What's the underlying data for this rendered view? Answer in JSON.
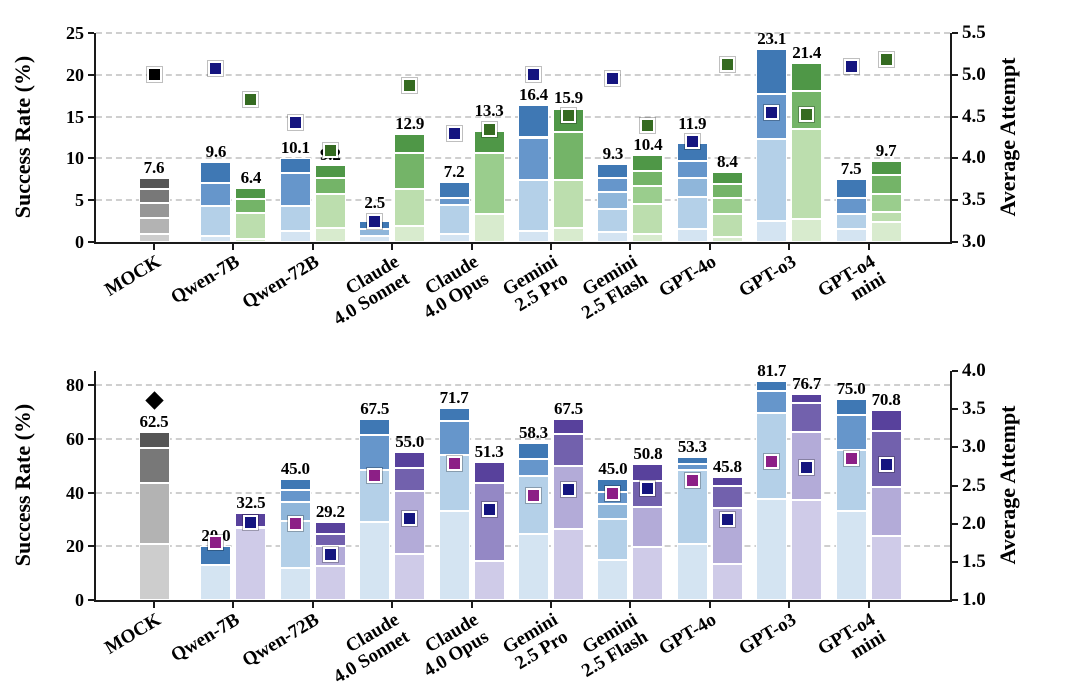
{
  "figure": {
    "description": "Two stacked-bar charts comparing model success rates (left axis) with average attempt markers (right axis)"
  },
  "colors": {
    "families": {
      "blue": [
        "#d4e4f2",
        "#b4d0e8",
        "#8fb6da",
        "#6696cb",
        "#3f78b4"
      ],
      "green": [
        "#d8ebce",
        "#bcdeae",
        "#9acd8d",
        "#74b468",
        "#4f9747"
      ],
      "purple": [
        "#cfcbe8",
        "#b3abd8",
        "#9488c5",
        "#7261ad",
        "#58419c"
      ],
      "gray": [
        "#cdcdcd",
        "#b3b3b3",
        "#979797",
        "#787878",
        "#565656"
      ]
    },
    "markers": {
      "navy": "#15157f",
      "darkgreen": "#356b21",
      "magenta": "#8c1f86",
      "black": "#000000"
    },
    "grid": "#cfcfcf",
    "spine": "#1a1a1a"
  },
  "chart_data": [
    {
      "type": "bar",
      "stacked": true,
      "ylabel_left": "Success Rate (%)",
      "ylabel_right": "Average Attempt",
      "axis_top_value": 25,
      "left_tick_values": [
        0,
        5,
        10,
        15,
        20,
        25
      ],
      "left_tick_labels": [
        "0",
        "5",
        "10",
        "15",
        "20",
        "25"
      ],
      "right_min": 3.0,
      "right_max": 5.5,
      "right_tick_values": [
        3.0,
        3.5,
        4.0,
        4.5,
        5.0,
        5.5
      ],
      "right_tick_labels": [
        "3.0",
        "3.5",
        "4.0",
        "4.5",
        "5.0",
        "5.5"
      ],
      "gridlines": [
        5,
        10,
        15,
        20,
        25
      ],
      "categories": [
        "MOCK",
        "Qwen-7B",
        "Qwen-72B",
        "Claude\n4.0 Sonnet",
        "Claude\n4.0 Opus",
        "Gemini\n2.5 Pro",
        "Gemini\n2.5 Flash",
        "GPT-4o",
        "GPT-o3",
        "GPT-o4\nmini"
      ],
      "groups": [
        {
          "category": "MOCK",
          "bars": [
            {
              "family": "gray",
              "label": "7.6",
              "total": 7.6,
              "cum": [
                1.0,
                2.9,
                4.7,
                6.3,
                7.6
              ],
              "marker": {
                "shape": "square",
                "color": "black",
                "attempt": 5.0
              }
            }
          ]
        },
        {
          "category": "Qwen-7B",
          "bars": [
            {
              "family": "blue",
              "label": "9.6",
              "total": 9.6,
              "cum": [
                0.7,
                4.3,
                7.0,
                9.6
              ],
              "marker": {
                "shape": "square",
                "color": "navy",
                "attempt": 5.08
              }
            },
            {
              "family": "green",
              "label": "6.4",
              "total": 6.4,
              "cum": [
                0.4,
                3.5,
                5.2,
                6.4
              ],
              "marker": {
                "shape": "square",
                "color": "darkgreen",
                "attempt": 4.7
              }
            }
          ]
        },
        {
          "category": "Qwen-72B",
          "bars": [
            {
              "family": "blue",
              "label": "10.1",
              "total": 10.1,
              "cum": [
                1.3,
                4.3,
                8.3,
                10.1
              ],
              "marker": {
                "shape": "square",
                "color": "navy",
                "attempt": 4.43
              }
            },
            {
              "family": "green",
              "label": "9.2",
              "total": 9.2,
              "cum": [
                1.7,
                5.8,
                7.7,
                9.2
              ],
              "marker": {
                "shape": "square",
                "color": "darkgreen",
                "attempt": 4.1
              }
            }
          ]
        },
        {
          "category": "Claude 4.0 Sonnet",
          "bars": [
            {
              "family": "blue",
              "label": "2.5",
              "total": 2.5,
              "cum": [
                0.7,
                1.6,
                2.5
              ],
              "marker": {
                "shape": "square",
                "color": "navy",
                "attempt": 3.25
              }
            },
            {
              "family": "green",
              "label": "12.9",
              "total": 12.9,
              "cum": [
                1.9,
                6.3,
                10.7,
                12.9
              ],
              "marker": {
                "shape": "square",
                "color": "darkgreen",
                "attempt": 4.87
              }
            }
          ]
        },
        {
          "category": "Claude 4.0 Opus",
          "bars": [
            {
              "family": "blue",
              "label": "7.2",
              "total": 7.2,
              "cum": [
                1.0,
                4.4,
                5.3,
                7.2
              ],
              "marker": {
                "shape": "square",
                "color": "navy",
                "attempt": 4.3
              }
            },
            {
              "family": "green",
              "label": "13.3",
              "total": 13.3,
              "cum": [
                3.3,
                10.7,
                13.3
              ],
              "marker": {
                "shape": "square",
                "color": "darkgreen",
                "attempt": 4.35
              }
            }
          ]
        },
        {
          "category": "Gemini 2.5 Pro",
          "bars": [
            {
              "family": "blue",
              "label": "16.4",
              "total": 16.4,
              "cum": [
                1.3,
                7.4,
                12.5,
                16.4
              ],
              "marker": {
                "shape": "square",
                "color": "navy",
                "attempt": 5.0
              }
            },
            {
              "family": "green",
              "label": "15.9",
              "total": 15.9,
              "cum": [
                1.7,
                7.4,
                13.2,
                15.9
              ],
              "marker": {
                "shape": "square",
                "color": "darkgreen",
                "attempt": 4.51
              }
            }
          ]
        },
        {
          "category": "Gemini 2.5 Flash",
          "bars": [
            {
              "family": "blue",
              "label": "9.3",
              "total": 9.3,
              "cum": [
                1.2,
                4.0,
                6.0,
                7.6,
                9.3
              ],
              "marker": {
                "shape": "square",
                "color": "navy",
                "attempt": 4.95
              }
            },
            {
              "family": "green",
              "label": "10.4",
              "total": 10.4,
              "cum": [
                1.0,
                4.6,
                6.7,
                8.5,
                10.4
              ],
              "marker": {
                "shape": "square",
                "color": "darkgreen",
                "attempt": 4.39
              }
            }
          ]
        },
        {
          "category": "GPT-4o",
          "bars": [
            {
              "family": "blue",
              "label": "11.9",
              "total": 11.9,
              "cum": [
                1.5,
                5.4,
                7.6,
                9.7,
                11.9
              ],
              "marker": {
                "shape": "square",
                "color": "navy",
                "attempt": 4.2
              }
            },
            {
              "family": "green",
              "label": "8.4",
              "total": 8.4,
              "cum": [
                0.6,
                3.3,
                5.3,
                6.9,
                8.4
              ],
              "marker": {
                "shape": "square",
                "color": "darkgreen",
                "attempt": 5.12
              }
            }
          ]
        },
        {
          "category": "GPT-o3",
          "bars": [
            {
              "family": "blue",
              "label": "23.1",
              "total": 23.1,
              "cum": [
                2.5,
                12.3,
                17.7,
                23.1
              ],
              "marker": {
                "shape": "square",
                "color": "navy",
                "attempt": 4.55
              }
            },
            {
              "family": "green",
              "label": "21.4",
              "total": 21.4,
              "cum": [
                2.7,
                13.5,
                18.1,
                21.4
              ],
              "marker": {
                "shape": "square",
                "color": "darkgreen",
                "attempt": 4.52
              }
            }
          ]
        },
        {
          "category": "GPT-o4 mini",
          "bars": [
            {
              "family": "blue",
              "label": "7.5",
              "total": 7.5,
              "cum": [
                1.5,
                3.3,
                5.3,
                7.5
              ],
              "marker": {
                "shape": "square",
                "color": "navy",
                "attempt": 5.1
              }
            },
            {
              "family": "green",
              "label": "9.7",
              "total": 9.7,
              "cum": [
                2.4,
                3.6,
                5.8,
                8.0,
                9.7
              ],
              "marker": {
                "shape": "square",
                "color": "darkgreen",
                "attempt": 5.18
              }
            }
          ]
        }
      ]
    },
    {
      "type": "bar",
      "stacked": true,
      "ylabel_left": "Success Rate (%)",
      "ylabel_right": "Average Attempt",
      "axis_top_value": 85.3,
      "left_tick_values": [
        0,
        20,
        40,
        60,
        80
      ],
      "left_tick_labels": [
        "0",
        "20",
        "40",
        "60",
        "80"
      ],
      "right_min": 1.0,
      "right_max": 4.0,
      "right_tick_values": [
        1.0,
        1.5,
        2.0,
        2.5,
        3.0,
        3.5,
        4.0
      ],
      "right_tick_labels": [
        "1.0",
        "1.5",
        "2.0",
        "2.5",
        "3.0",
        "3.5",
        "4.0"
      ],
      "gridlines": [
        20,
        40,
        60,
        80
      ],
      "categories": [
        "MOCK",
        "Qwen-7B",
        "Qwen-72B",
        "Claude\n4.0 Sonnet",
        "Claude\n4.0 Opus",
        "Gemini\n2.5 Pro",
        "Gemini\n2.5 Flash",
        "GPT-4o",
        "GPT-o3",
        "GPT-o4\nmini"
      ],
      "groups": [
        {
          "category": "MOCK",
          "bars": [
            {
              "family": "gray",
              "label": "62.5",
              "total": 62.5,
              "cum": [
                20.8,
                43.5,
                56.5,
                62.5
              ],
              "marker": {
                "shape": "diamond",
                "color": "black",
                "attempt": 3.62
              }
            }
          ]
        },
        {
          "category": "Qwen-7B",
          "bars": [
            {
              "family": "blue",
              "label": "20.0",
              "total": 20.0,
              "cum": [
                13.0,
                20.0
              ],
              "marker": {
                "shape": "square",
                "color": "magenta",
                "attempt": 1.75
              }
            },
            {
              "family": "purple",
              "label": "32.5",
              "total": 32.5,
              "cum": [
                27.0,
                32.5
              ],
              "marker": {
                "shape": "square",
                "color": "navy",
                "attempt": 2.01
              }
            }
          ]
        },
        {
          "category": "Qwen-72B",
          "bars": [
            {
              "family": "blue",
              "label": "45.0",
              "total": 45.0,
              "cum": [
                12.0,
                29.5,
                36.5,
                41.0,
                45.0
              ],
              "marker": {
                "shape": "square",
                "color": "magenta",
                "attempt": 2.0
              }
            },
            {
              "family": "purple",
              "label": "29.2",
              "total": 29.2,
              "cum": [
                12.8,
                20.0,
                24.5,
                29.2
              ],
              "marker": {
                "shape": "square",
                "color": "navy",
                "attempt": 1.6
              }
            }
          ]
        },
        {
          "category": "Claude 4.0 Sonnet",
          "bars": [
            {
              "family": "blue",
              "label": "67.5",
              "total": 67.5,
              "cum": [
                29.0,
                48.5,
                61.5,
                67.5
              ],
              "marker": {
                "shape": "square",
                "color": "magenta",
                "attempt": 2.63
              }
            },
            {
              "family": "purple",
              "label": "55.0",
              "total": 55.0,
              "cum": [
                17.0,
                40.5,
                49.0,
                55.0
              ],
              "marker": {
                "shape": "square",
                "color": "navy",
                "attempt": 2.07
              }
            }
          ]
        },
        {
          "category": "Claude 4.0 Opus",
          "bars": [
            {
              "family": "blue",
              "label": "71.7",
              "total": 71.7,
              "cum": [
                33.0,
                54.0,
                66.5,
                71.7
              ],
              "marker": {
                "shape": "square",
                "color": "magenta",
                "attempt": 2.79
              }
            },
            {
              "family": "purple",
              "label": "51.3",
              "total": 51.3,
              "cum": [
                14.5,
                43.5,
                51.3
              ],
              "marker": {
                "shape": "square",
                "color": "navy",
                "attempt": 2.18
              }
            }
          ]
        },
        {
          "category": "Gemini 2.5 Pro",
          "bars": [
            {
              "family": "blue",
              "label": "58.3",
              "total": 58.3,
              "cum": [
                24.7,
                46.3,
                52.7,
                58.3
              ],
              "marker": {
                "shape": "square",
                "color": "magenta",
                "attempt": 2.37
              }
            },
            {
              "family": "purple",
              "label": "67.5",
              "total": 67.5,
              "cum": [
                26.5,
                50.0,
                61.7,
                67.5
              ],
              "marker": {
                "shape": "square",
                "color": "navy",
                "attempt": 2.45
              }
            }
          ]
        },
        {
          "category": "Gemini 2.5 Flash",
          "bars": [
            {
              "family": "blue",
              "label": "45.0",
              "total": 45.0,
              "cum": [
                14.8,
                30.2,
                35.8,
                40.3,
                45.0
              ],
              "marker": {
                "shape": "square",
                "color": "magenta",
                "attempt": 2.4
              }
            },
            {
              "family": "purple",
              "label": "50.8",
              "total": 50.8,
              "cum": [
                19.7,
                34.6,
                44.4,
                50.8
              ],
              "marker": {
                "shape": "square",
                "color": "navy",
                "attempt": 2.46
              }
            }
          ]
        },
        {
          "category": "GPT-4o",
          "bars": [
            {
              "family": "blue",
              "label": "53.3",
              "total": 53.3,
              "cum": [
                21.0,
                48.3,
                50.7,
                53.3
              ],
              "marker": {
                "shape": "square",
                "color": "magenta",
                "attempt": 2.57
              }
            },
            {
              "family": "purple",
              "label": "45.8",
              "total": 45.8,
              "cum": [
                13.4,
                34.2,
                42.5,
                45.8
              ],
              "marker": {
                "shape": "square",
                "color": "navy",
                "attempt": 2.06
              }
            }
          ]
        },
        {
          "category": "GPT-o3",
          "bars": [
            {
              "family": "blue",
              "label": "81.7",
              "total": 81.7,
              "cum": [
                37.7,
                69.5,
                77.8,
                81.7
              ],
              "marker": {
                "shape": "square",
                "color": "magenta",
                "attempt": 2.81
              }
            },
            {
              "family": "purple",
              "label": "76.7",
              "total": 76.7,
              "cum": [
                37.1,
                62.4,
                73.2,
                76.7
              ],
              "marker": {
                "shape": "square",
                "color": "navy",
                "attempt": 2.74
              }
            }
          ]
        },
        {
          "category": "GPT-o4 mini",
          "bars": [
            {
              "family": "blue",
              "label": "75.0",
              "total": 75.0,
              "cum": [
                33.0,
                56.0,
                69.0,
                75.0
              ],
              "marker": {
                "shape": "square",
                "color": "magenta",
                "attempt": 2.85
              }
            },
            {
              "family": "purple",
              "label": "70.8",
              "total": 70.8,
              "cum": [
                24.0,
                42.0,
                63.0,
                70.8
              ],
              "marker": {
                "shape": "square",
                "color": "navy",
                "attempt": 2.78
              }
            }
          ]
        }
      ]
    }
  ]
}
